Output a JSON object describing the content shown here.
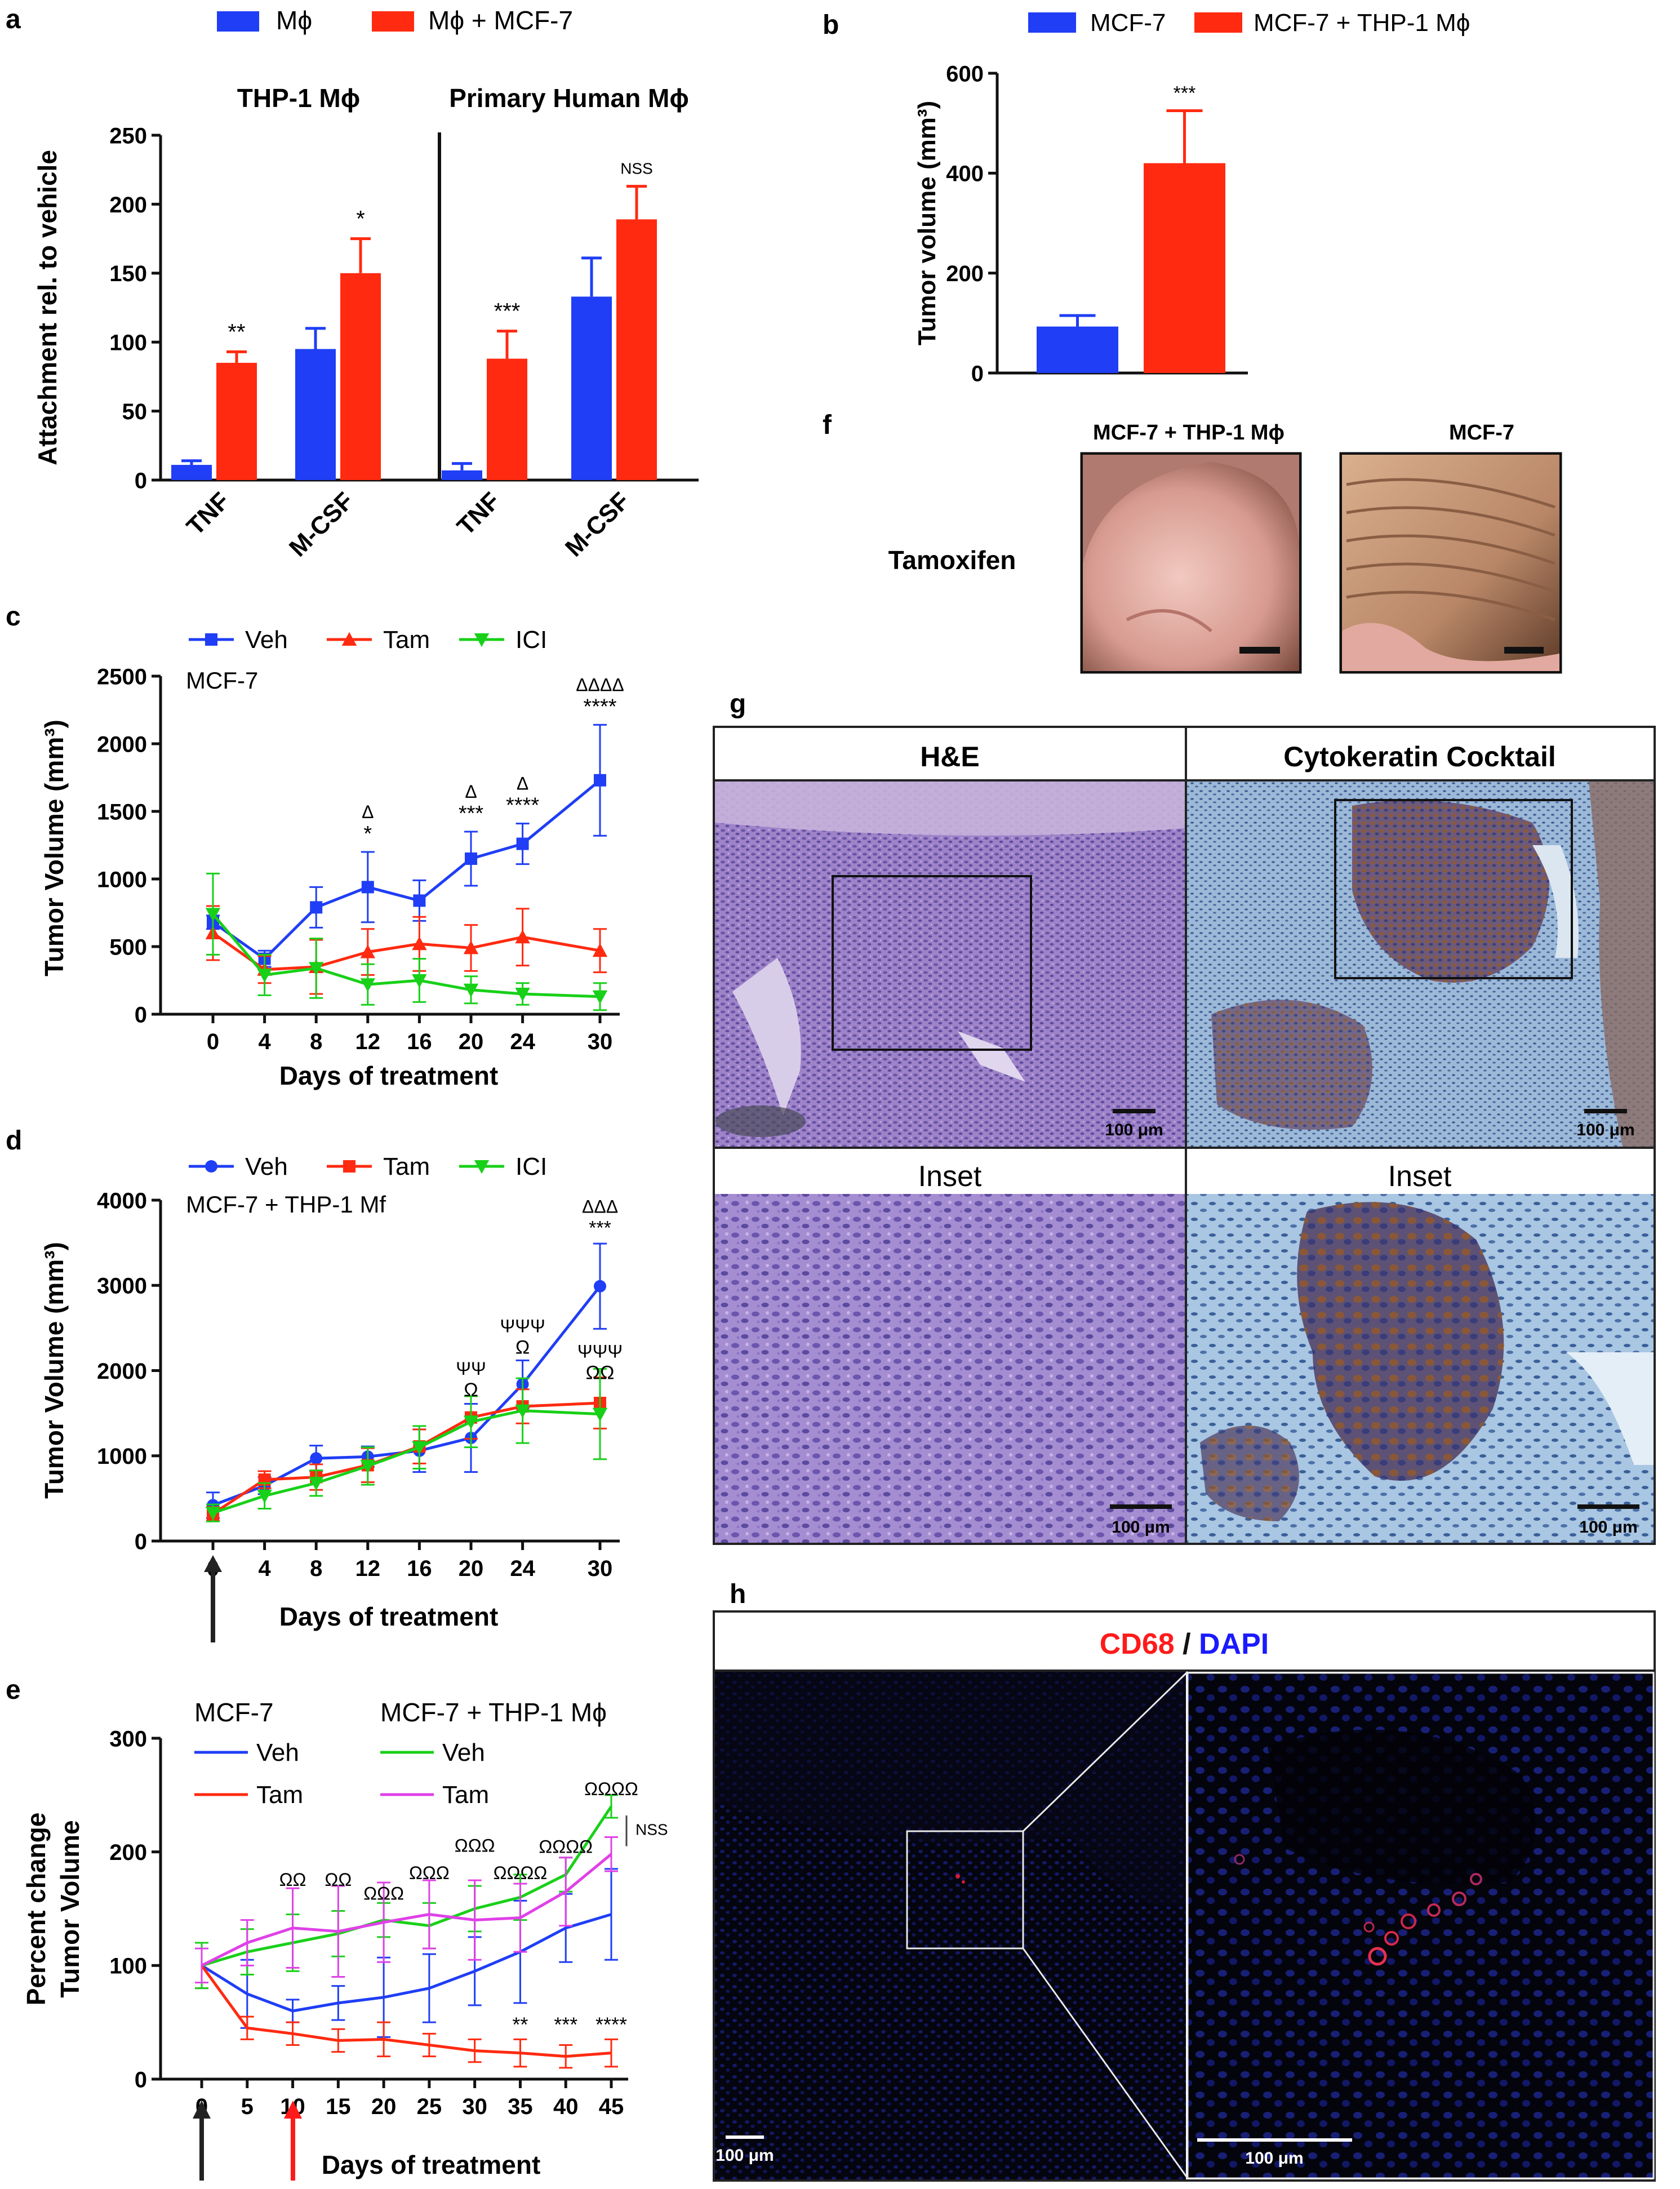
{
  "panel_labels": {
    "a": "a",
    "b": "b",
    "c": "c",
    "d": "d",
    "e": "e",
    "f": "f",
    "g": "g",
    "h": "h"
  },
  "colors": {
    "blue": "#1f3ef5",
    "red": "#ff2a10",
    "green": "#18d018",
    "magenta": "#e040e8"
  },
  "chart_data": [
    {
      "id": "a",
      "type": "bar",
      "legend": [
        "Mϕ",
        "Mϕ + MCF-7"
      ],
      "group_titles": [
        "THP-1 Mϕ",
        "Primary Human Mϕ"
      ],
      "categories": [
        "TNF",
        "M-CSF",
        "TNF",
        "M-CSF"
      ],
      "ylabel": "Attachment rel. to vehicle",
      "ylim": [
        0,
        250
      ],
      "yticks": [
        0,
        50,
        100,
        150,
        200,
        250
      ],
      "series": [
        {
          "name": "Mϕ",
          "values": [
            11,
            95,
            7,
            133
          ],
          "errors": [
            3,
            15,
            5,
            28
          ]
        },
        {
          "name": "Mϕ + MCF-7",
          "values": [
            85,
            150,
            88,
            189
          ],
          "errors": [
            8,
            25,
            20,
            24
          ]
        }
      ],
      "annotations": [
        "**",
        "*",
        "***",
        "NSS"
      ]
    },
    {
      "id": "b",
      "type": "bar",
      "legend": [
        "MCF-7",
        "MCF-7 + THP-1 Mϕ"
      ],
      "categories": [
        "MCF-7",
        "MCF-7 + THP-1 Mϕ"
      ],
      "ylabel": "Tumor volume (mm³)",
      "ylim": [
        0,
        600
      ],
      "yticks": [
        0,
        200,
        400,
        600
      ],
      "values": [
        93,
        420
      ],
      "errors": [
        22,
        105
      ],
      "annotations": [
        "***"
      ]
    },
    {
      "id": "c",
      "type": "line",
      "subtitle": "MCF-7",
      "xlabel": "Days of treatment",
      "ylabel": "Tumor Volume (mm³)",
      "x": [
        0,
        4,
        8,
        12,
        16,
        20,
        24,
        30
      ],
      "ylim": [
        0,
        2500
      ],
      "yticks": [
        0,
        500,
        1000,
        1500,
        2000,
        2500
      ],
      "series": [
        {
          "name": "Veh",
          "values": [
            680,
            410,
            790,
            940,
            840,
            1150,
            1260,
            1730
          ],
          "errors": [
            50,
            60,
            150,
            260,
            150,
            200,
            150,
            410
          ]
        },
        {
          "name": "Tam",
          "values": [
            600,
            330,
            350,
            460,
            520,
            490,
            570,
            470
          ],
          "errors": [
            200,
            100,
            200,
            170,
            200,
            170,
            210,
            160
          ]
        },
        {
          "name": "ICI",
          "values": [
            740,
            290,
            340,
            220,
            250,
            180,
            150,
            130
          ],
          "errors": [
            300,
            150,
            220,
            150,
            160,
            100,
            80,
            100
          ]
        }
      ],
      "annotations": [
        {
          "day": 12,
          "lines": [
            "Δ",
            "*"
          ]
        },
        {
          "day": 20,
          "lines": [
            "Δ",
            "***"
          ]
        },
        {
          "day": 24,
          "lines": [
            "Δ",
            "****"
          ]
        },
        {
          "day": 30,
          "lines": [
            "ΔΔΔΔ",
            "****"
          ]
        }
      ]
    },
    {
      "id": "d",
      "type": "line",
      "subtitle": "MCF-7 + THP-1 Mf",
      "xlabel": "Days of treatment",
      "ylabel": "Tumor Volume (mm³)",
      "x": [
        0,
        4,
        8,
        12,
        16,
        20,
        24,
        30
      ],
      "ylim": [
        0,
        4000
      ],
      "yticks": [
        0,
        1000,
        2000,
        3000,
        4000
      ],
      "series": [
        {
          "name": "Veh",
          "values": [
            420,
            650,
            970,
            990,
            1060,
            1210,
            1840,
            2990
          ],
          "errors": [
            150,
            100,
            150,
            120,
            250,
            400,
            280,
            500
          ]
        },
        {
          "name": "Tam",
          "values": [
            320,
            720,
            750,
            890,
            1110,
            1450,
            1580,
            1620
          ],
          "errors": [
            80,
            100,
            150,
            200,
            200,
            250,
            200,
            300
          ]
        },
        {
          "name": "ICI",
          "values": [
            330,
            530,
            680,
            880,
            1100,
            1400,
            1530,
            1490
          ],
          "errors": [
            100,
            150,
            150,
            220,
            250,
            300,
            380,
            530
          ]
        }
      ],
      "annotations": [
        {
          "day": 20,
          "lines": [
            "ΨΨ",
            "Ω"
          ]
        },
        {
          "day": 24,
          "lines": [
            "ΨΨΨ",
            "Ω"
          ]
        },
        {
          "day": 30,
          "lines": [
            "ΔΔΔ",
            "***"
          ]
        },
        {
          "day": 30,
          "lines": [
            "ΨΨΨ",
            "ΩΩ"
          ]
        }
      ]
    },
    {
      "id": "e",
      "type": "line",
      "xlabel": "Days of treatment",
      "ylabel_line1": "Percent change",
      "ylabel_line2": "Tumor Volume",
      "legend_groups": [
        "MCF-7",
        "MCF-7 + THP-1 Mϕ"
      ],
      "x": [
        0,
        5,
        10,
        15,
        20,
        25,
        30,
        35,
        40,
        45
      ],
      "ylim": [
        0,
        300
      ],
      "yticks": [
        0,
        100,
        200,
        300
      ],
      "series": [
        {
          "name": "Veh",
          "group": "MCF-7",
          "values": [
            100,
            75,
            60,
            67,
            72,
            80,
            95,
            112,
            133,
            145
          ],
          "errors": [
            20,
            30,
            10,
            15,
            35,
            30,
            30,
            45,
            30,
            40
          ]
        },
        {
          "name": "Tam",
          "group": "MCF-7",
          "values": [
            100,
            45,
            40,
            34,
            35,
            30,
            25,
            23,
            20,
            23
          ],
          "errors": [
            20,
            10,
            10,
            10,
            15,
            10,
            10,
            12,
            10,
            12
          ]
        },
        {
          "name": "Veh",
          "group": "MCF-7 + THP-1 Mϕ",
          "values": [
            100,
            112,
            120,
            128,
            140,
            135,
            150,
            160,
            180,
            240
          ],
          "errors": [
            20,
            20,
            25,
            20,
            15,
            20,
            20,
            20,
            15,
            10
          ]
        },
        {
          "name": "Tam",
          "group": "MCF-7 + THP-1 Mϕ",
          "values": [
            100,
            120,
            133,
            130,
            138,
            145,
            140,
            142,
            165,
            198
          ],
          "errors": [
            15,
            20,
            35,
            40,
            35,
            30,
            35,
            30,
            30,
            15
          ]
        }
      ],
      "annotations_top": [
        {
          "day": 10,
          "text": "ΩΩ"
        },
        {
          "day": 15,
          "text": "ΩΩ"
        },
        {
          "day": 20,
          "text": "ΩΩΩ"
        },
        {
          "day": 25,
          "text": "ΩΩΩ"
        },
        {
          "day": 30,
          "text": "ΩΩΩ"
        },
        {
          "day": 35,
          "text": "ΩΩΩΩ"
        },
        {
          "day": 40,
          "text": "ΩΩΩΩ"
        },
        {
          "day": 45,
          "text": "ΩΩΩΩ"
        }
      ],
      "annotations_bottom": [
        {
          "day": 35,
          "text": "**"
        },
        {
          "day": 40,
          "text": "***"
        },
        {
          "day": 45,
          "text": "****"
        }
      ],
      "nss": "NSS"
    }
  ],
  "panel_f": {
    "row_label": "Tamoxifen",
    "col1": "MCF-7 + THP-1 Mϕ",
    "col2": "MCF-7"
  },
  "panel_g": {
    "col1": "H&E",
    "col2": "Cytokeratin Cocktail",
    "inset": "Inset",
    "scale": "100 μm"
  },
  "panel_h": {
    "title_red": "CD68",
    "title_sep": " / ",
    "title_blue": "DAPI",
    "scale": "100 μm"
  }
}
